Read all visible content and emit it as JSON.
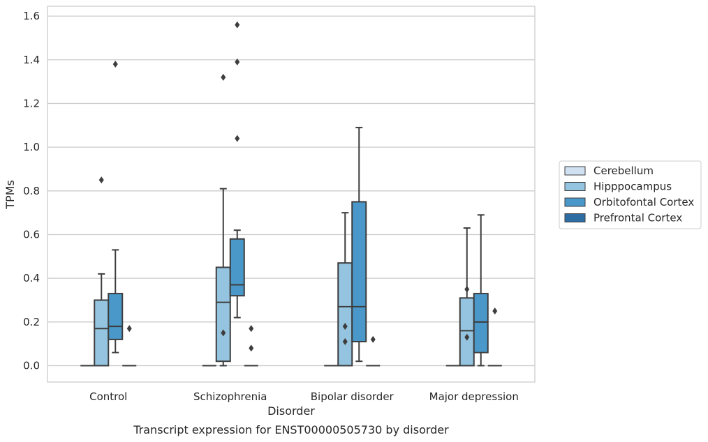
{
  "chart_data": {
    "type": "box",
    "xlabel": "Disorder",
    "ylabel": "TPMs",
    "caption": "Transcript expression for ENST00000505730 by disorder",
    "categories": [
      "Control",
      "Schizophrenia",
      "Bipolar disorder",
      "Major depression"
    ],
    "ylim": [
      -0.075,
      1.645
    ],
    "yticks": [
      0.0,
      0.2,
      0.4,
      0.6,
      0.8,
      1.0,
      1.2,
      1.4,
      1.6
    ],
    "ytick_labels": [
      "0.0",
      "0.2",
      "0.4",
      "0.6",
      "0.8",
      "1.0",
      "1.2",
      "1.4",
      "1.6"
    ],
    "grid": true,
    "legend_position": "right",
    "series": [
      {
        "name": "Cerebellum",
        "color": "#d0e1f2",
        "boxes": [
          {
            "q1": 0.0,
            "median": 0.0,
            "q3": 0.0,
            "whislo": 0.0,
            "whishi": 0.0,
            "fliers": []
          },
          {
            "q1": 0.0,
            "median": 0.0,
            "q3": 0.0,
            "whislo": 0.0,
            "whishi": 0.0,
            "fliers": []
          },
          {
            "q1": 0.0,
            "median": 0.0,
            "q3": 0.0,
            "whislo": 0.0,
            "whishi": 0.0,
            "fliers": []
          },
          {
            "q1": 0.0,
            "median": 0.0,
            "q3": 0.0,
            "whislo": 0.0,
            "whishi": 0.0,
            "fliers": []
          }
        ]
      },
      {
        "name": "Hipppocampus",
        "color": "#94c4df",
        "boxes": [
          {
            "q1": 0.0,
            "median": 0.17,
            "q3": 0.3,
            "whislo": 0.0,
            "whishi": 0.42,
            "fliers": [
              0.85
            ]
          },
          {
            "q1": 0.02,
            "median": 0.29,
            "q3": 0.45,
            "whislo": 0.0,
            "whishi": 0.81,
            "fliers": [
              0.15,
              1.32
            ]
          },
          {
            "q1": 0.0,
            "median": 0.27,
            "q3": 0.47,
            "whislo": 0.0,
            "whishi": 0.7,
            "fliers": [
              0.11,
              0.18
            ]
          },
          {
            "q1": 0.0,
            "median": 0.16,
            "q3": 0.31,
            "whislo": 0.0,
            "whishi": 0.63,
            "fliers": [
              0.13,
              0.35
            ]
          }
        ]
      },
      {
        "name": "Orbitofontal Cortex",
        "color": "#4a98c9",
        "boxes": [
          {
            "q1": 0.12,
            "median": 0.18,
            "q3": 0.33,
            "whislo": 0.06,
            "whishi": 0.53,
            "fliers": [
              1.38
            ]
          },
          {
            "q1": 0.32,
            "median": 0.37,
            "q3": 0.58,
            "whislo": 0.22,
            "whishi": 0.62,
            "fliers": [
              1.04,
              1.39,
              1.56
            ]
          },
          {
            "q1": 0.11,
            "median": 0.27,
            "q3": 0.75,
            "whislo": 0.02,
            "whishi": 1.09,
            "fliers": []
          },
          {
            "q1": 0.06,
            "median": 0.2,
            "q3": 0.33,
            "whislo": 0.0,
            "whishi": 0.69,
            "fliers": []
          }
        ]
      },
      {
        "name": "Prefrontal Cortex",
        "color": "#2e6da4",
        "boxes": [
          {
            "q1": 0.0,
            "median": 0.0,
            "q3": 0.0,
            "whislo": 0.0,
            "whishi": 0.0,
            "fliers": [
              0.17
            ]
          },
          {
            "q1": 0.0,
            "median": 0.0,
            "q3": 0.0,
            "whislo": 0.0,
            "whishi": 0.0,
            "fliers": [
              0.08,
              0.17
            ]
          },
          {
            "q1": 0.0,
            "median": 0.0,
            "q3": 0.0,
            "whislo": 0.0,
            "whishi": 0.0,
            "fliers": [
              0.12
            ]
          },
          {
            "q1": 0.0,
            "median": 0.0,
            "q3": 0.0,
            "whislo": 0.0,
            "whishi": 0.0,
            "fliers": [
              0.25
            ]
          }
        ]
      }
    ]
  }
}
